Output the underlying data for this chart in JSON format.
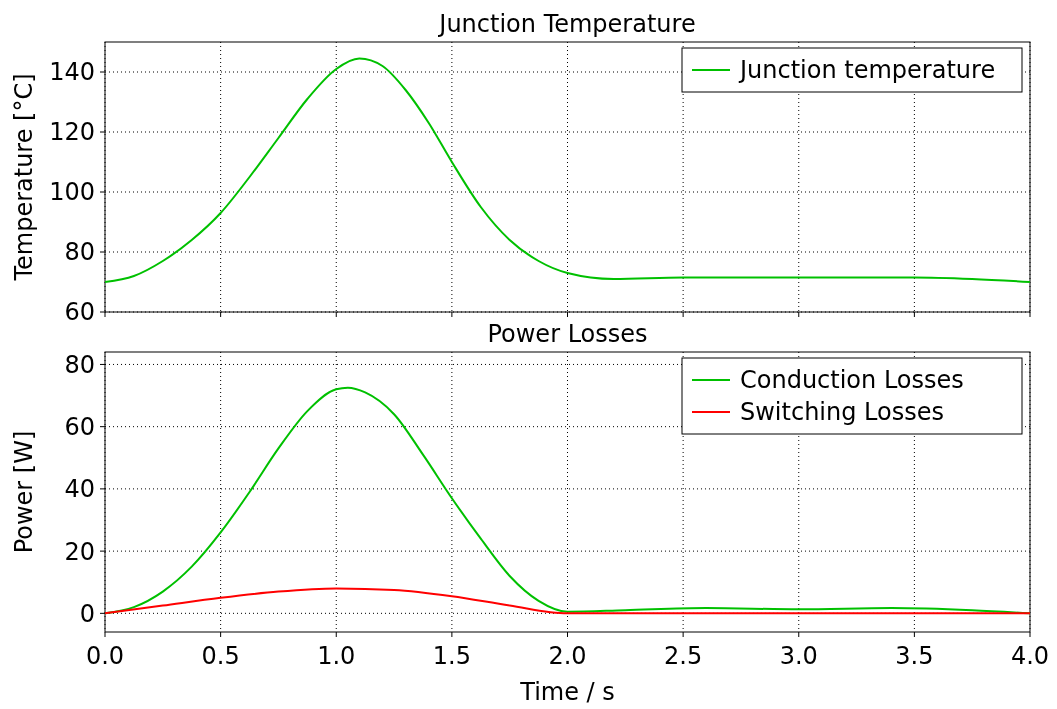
{
  "chart_data": [
    {
      "type": "line",
      "title": "Junction Temperature",
      "ylabel": "Temperature [°C]",
      "xlim": [
        0,
        4
      ],
      "ylim": [
        60,
        150
      ],
      "yticks": [
        60,
        80,
        100,
        120,
        140
      ],
      "xticks": [
        {
          "value": 0,
          "label": null
        },
        {
          "value": 0.5,
          "label": null
        },
        {
          "value": 1,
          "label": null
        },
        {
          "value": 1.5,
          "label": null
        },
        {
          "value": 2,
          "label": null
        },
        {
          "value": 2.5,
          "label": null
        },
        {
          "value": 3,
          "label": null
        },
        {
          "value": 3.5,
          "label": null
        },
        {
          "value": 4,
          "label": null
        }
      ],
      "tick_labels": "y",
      "grid": true,
      "legend": "top right",
      "line_style": "solid",
      "marker": "none",
      "series": [
        {
          "name": "Junction temperature",
          "color": "#00c000",
          "x": [
            0,
            0.125,
            0.25,
            0.375,
            0.5,
            0.625,
            0.75,
            0.875,
            1.0,
            1.1,
            1.2,
            1.3,
            1.4,
            1.5,
            1.625,
            1.75,
            1.875,
            2.0,
            2.2,
            2.5,
            3,
            3.5,
            3.75,
            4
          ],
          "values": [
            70,
            72,
            77,
            84,
            93,
            105,
            118,
            131,
            141,
            144.5,
            142,
            134,
            123,
            110,
            95,
            84,
            77,
            73,
            71,
            71.5,
            71.5,
            71.5,
            71,
            70
          ]
        }
      ]
    },
    {
      "type": "line",
      "title": "Power Losses",
      "xlabel": "Time / s",
      "ylabel": "Power [W]",
      "xlim": [
        0,
        4
      ],
      "ylim": [
        -6,
        84
      ],
      "yticks": [
        0,
        20,
        40,
        60,
        80
      ],
      "xticks": [
        {
          "value": 0,
          "label": "0.0"
        },
        {
          "value": 0.5,
          "label": "0.5"
        },
        {
          "value": 1,
          "label": "1.0"
        },
        {
          "value": 1.5,
          "label": "1.5"
        },
        {
          "value": 2,
          "label": "2.0"
        },
        {
          "value": 2.5,
          "label": "2.5"
        },
        {
          "value": 3,
          "label": "3.0"
        },
        {
          "value": 3.5,
          "label": "3.5"
        },
        {
          "value": 4,
          "label": "4.0"
        }
      ],
      "grid": true,
      "legend": "top right",
      "line_style": "solid",
      "marker": "none",
      "series": [
        {
          "name": "Conduction Losses",
          "color": "#00c000",
          "x": [
            0,
            0.125,
            0.25,
            0.375,
            0.5,
            0.625,
            0.75,
            0.875,
            1.0,
            1.05,
            1.125,
            1.25,
            1.375,
            1.5,
            1.625,
            1.75,
            1.875,
            2.0,
            2.25,
            2.6,
            3.0,
            3.4,
            3.75,
            4
          ],
          "values": [
            0,
            2,
            7,
            15,
            26,
            39,
            53,
            65,
            72,
            72.5,
            71,
            64,
            51,
            37,
            24,
            12,
            4,
            0.5,
            1,
            1.7,
            1.3,
            1.7,
            1,
            0
          ]
        },
        {
          "name": "Switching Losses",
          "color": "#ff0000",
          "x": [
            0,
            0.25,
            0.5,
            0.75,
            1.0,
            1.25,
            1.5,
            1.75,
            2.0,
            2.5,
            3,
            3.5,
            4
          ],
          "values": [
            0,
            2.5,
            5,
            7,
            8,
            7.5,
            5.5,
            2.5,
            0,
            0,
            0,
            0,
            0
          ]
        }
      ]
    }
  ]
}
